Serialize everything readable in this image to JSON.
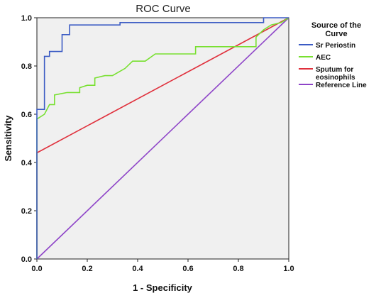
{
  "chart_data": {
    "type": "line",
    "title": "ROC Curve",
    "xlabel": "1 - Specificity",
    "ylabel": "Sensitivity",
    "xlim": [
      0,
      1
    ],
    "ylim": [
      0,
      1
    ],
    "x_ticks": [
      "0.0",
      "0.2",
      "0.4",
      "0.6",
      "0.8",
      "1.0"
    ],
    "y_ticks": [
      "0.0",
      "0.2",
      "0.4",
      "0.6",
      "0.8",
      "1.0"
    ],
    "grid": false,
    "legend": {
      "title": [
        "Source of the",
        "Curve"
      ],
      "placement": "top-right outside plot"
    },
    "series": [
      {
        "name": [
          "Sr  Periostin"
        ],
        "color": "#3b5bc4",
        "points": [
          [
            0,
            0
          ],
          [
            0,
            0.62
          ],
          [
            0.03,
            0.62
          ],
          [
            0.03,
            0.84
          ],
          [
            0.05,
            0.84
          ],
          [
            0.05,
            0.86
          ],
          [
            0.1,
            0.86
          ],
          [
            0.1,
            0.93
          ],
          [
            0.13,
            0.93
          ],
          [
            0.13,
            0.97
          ],
          [
            0.33,
            0.97
          ],
          [
            0.33,
            0.98
          ],
          [
            0.9,
            0.98
          ],
          [
            0.9,
            1
          ],
          [
            1,
            1
          ]
        ]
      },
      {
        "name": [
          "AEC"
        ],
        "color": "#78e030",
        "points": [
          [
            0,
            0
          ],
          [
            0,
            0.58
          ],
          [
            0.03,
            0.6
          ],
          [
            0.05,
            0.64
          ],
          [
            0.07,
            0.64
          ],
          [
            0.07,
            0.68
          ],
          [
            0.12,
            0.69
          ],
          [
            0.17,
            0.69
          ],
          [
            0.17,
            0.71
          ],
          [
            0.2,
            0.72
          ],
          [
            0.23,
            0.72
          ],
          [
            0.23,
            0.75
          ],
          [
            0.27,
            0.76
          ],
          [
            0.3,
            0.76
          ],
          [
            0.35,
            0.79
          ],
          [
            0.38,
            0.82
          ],
          [
            0.43,
            0.82
          ],
          [
            0.47,
            0.85
          ],
          [
            0.63,
            0.85
          ],
          [
            0.63,
            0.88
          ],
          [
            0.87,
            0.88
          ],
          [
            0.87,
            0.92
          ],
          [
            0.9,
            0.95
          ],
          [
            0.93,
            0.97
          ],
          [
            0.97,
            0.98
          ],
          [
            1,
            1
          ]
        ]
      },
      {
        "name": [
          "Sputum for",
          "eosinophils"
        ],
        "color": "#e0303c",
        "points": [
          [
            0,
            0
          ],
          [
            0,
            0.44
          ],
          [
            1,
            1
          ]
        ]
      },
      {
        "name": [
          "Reference Line"
        ],
        "color": "#8e44c8",
        "points": [
          [
            0,
            0
          ],
          [
            1,
            1
          ]
        ]
      }
    ]
  }
}
